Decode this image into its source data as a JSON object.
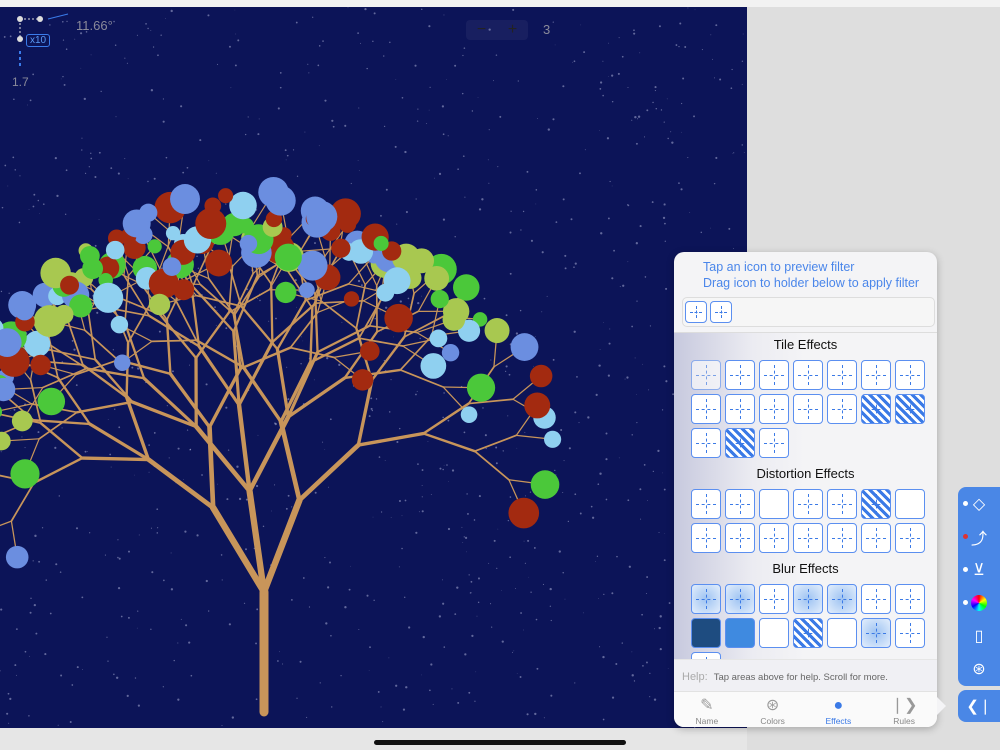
{
  "canvas": {
    "angle": "11.66°",
    "multiplier": "x10",
    "scale": "1.7",
    "zoom_minus": "−",
    "zoom_plus": "+",
    "zoom_level": "3"
  },
  "panel": {
    "hint_line1": "Tap an icon to preview filter",
    "hint_line2": "Drag icon to holder below to apply filter",
    "sections": [
      {
        "title": "Tile Effects",
        "count": 17
      },
      {
        "title": "Distortion Effects",
        "count": 14
      },
      {
        "title": "Blur Effects",
        "count": 15
      }
    ],
    "help_label": "Help:",
    "help_text": "Tap areas above for help. Scroll for more."
  },
  "tabs": [
    {
      "label": "Name",
      "icon": "pencil-icon"
    },
    {
      "label": "Colors",
      "icon": "color-circles-icon"
    },
    {
      "label": "Effects",
      "icon": "effects-icon",
      "active": true
    },
    {
      "label": "Rules",
      "icon": "rules-icon"
    }
  ],
  "sidebar": [
    "shape-tool-icon",
    "branch-tool-icon",
    "level-tool-icon",
    "color-wheel-icon",
    "frame-icon",
    "overlap-circles-icon"
  ],
  "colors": {
    "background": "#0c1458",
    "branch": "#c8955a",
    "accent": "#4a87e6",
    "ornaments": [
      "#a32a10",
      "#a8c850",
      "#4bc83a",
      "#6b8ee0",
      "#8fd0f0"
    ]
  }
}
